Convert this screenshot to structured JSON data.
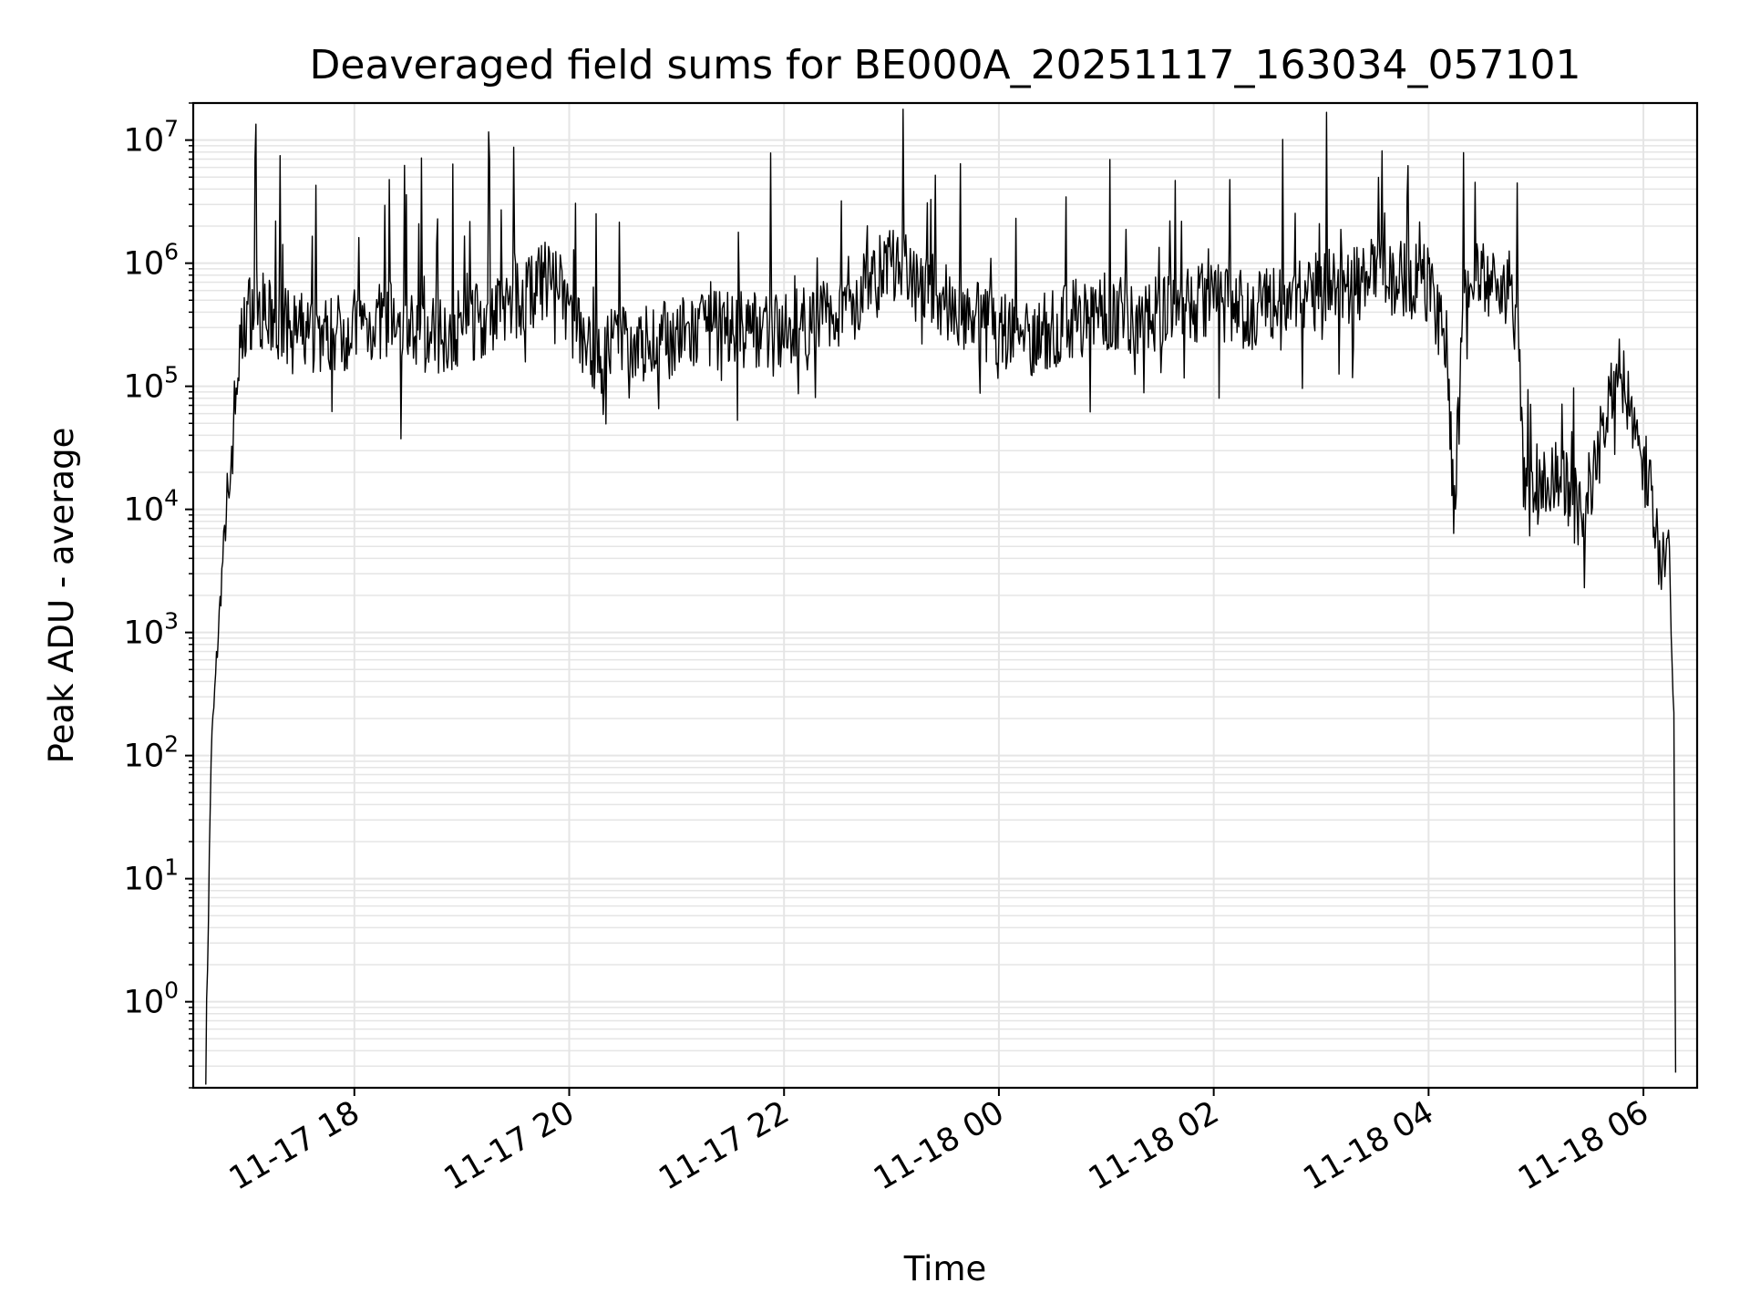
{
  "chart_data": {
    "type": "line",
    "title": "Deaveraged field sums for BE000A_20251117_163034_057101",
    "xlabel": "Time",
    "ylabel": "Peak ADU - average",
    "yscale": "log",
    "grid": true,
    "line_color": "#000000",
    "grid_color": "#e5e5e5",
    "xlim": [
      "2025-11-17 16:30",
      "2025-11-18 06:30"
    ],
    "ylim": [
      0.2,
      20000000
    ],
    "xticks": [
      {
        "value": "2025-11-17 18:00",
        "label": "11-17 18"
      },
      {
        "value": "2025-11-17 20:00",
        "label": "11-17 20"
      },
      {
        "value": "2025-11-17 22:00",
        "label": "11-17 22"
      },
      {
        "value": "2025-11-18 00:00",
        "label": "11-18 00"
      },
      {
        "value": "2025-11-18 02:00",
        "label": "11-18 02"
      },
      {
        "value": "2025-11-18 04:00",
        "label": "11-18 04"
      },
      {
        "value": "2025-11-18 06:00",
        "label": "11-18 06"
      }
    ],
    "yticks": [
      {
        "exp": "0",
        "label_base": "10",
        "value": 1
      },
      {
        "exp": "1",
        "label_base": "10",
        "value": 10
      },
      {
        "exp": "2",
        "label_base": "10",
        "value": 100
      },
      {
        "exp": "3",
        "label_base": "10",
        "value": 1000
      },
      {
        "exp": "4",
        "label_base": "10",
        "value": 10000
      },
      {
        "exp": "5",
        "label_base": "10",
        "value": 100000
      },
      {
        "exp": "6",
        "label_base": "10",
        "value": 1000000
      },
      {
        "exp": "7",
        "label_base": "10",
        "value": 10000000
      }
    ],
    "series": [
      {
        "x": [
          "2025-11-17 16:37",
          "2025-11-17 16:40",
          "2025-11-17 16:44",
          "2025-11-17 16:47",
          "2025-11-17 16:50",
          "2025-11-17 16:55",
          "2025-11-17 17:00",
          "2025-11-17 17:06",
          "2025-11-17 17:12",
          "2025-11-17 17:20",
          "2025-11-17 17:30",
          "2025-11-17 17:40",
          "2025-11-17 17:50",
          "2025-11-17 18:00",
          "2025-11-17 18:20",
          "2025-11-17 18:40",
          "2025-11-17 19:00",
          "2025-11-17 19:20",
          "2025-11-17 19:40",
          "2025-11-17 19:50",
          "2025-11-17 20:10",
          "2025-11-17 20:40",
          "2025-11-17 21:00",
          "2025-11-17 21:20",
          "2025-11-17 21:40",
          "2025-11-17 22:00",
          "2025-11-17 22:20",
          "2025-11-17 22:40",
          "2025-11-17 23:00",
          "2025-11-17 23:20",
          "2025-11-17 23:40",
          "2025-11-18 00:00",
          "2025-11-18 00:20",
          "2025-11-18 00:40",
          "2025-11-18 01:00",
          "2025-11-18 01:20",
          "2025-11-18 01:40",
          "2025-11-18 02:00",
          "2025-11-18 02:20",
          "2025-11-18 02:40",
          "2025-11-18 03:00",
          "2025-11-18 03:20",
          "2025-11-18 03:40",
          "2025-11-18 04:00",
          "2025-11-18 04:10",
          "2025-11-18 04:14",
          "2025-11-18 04:20",
          "2025-11-18 04:30",
          "2025-11-18 04:45",
          "2025-11-18 04:50",
          "2025-11-18 04:53",
          "2025-11-18 04:55",
          "2025-11-18 05:05",
          "2025-11-18 05:15",
          "2025-11-18 05:25",
          "2025-11-18 05:35",
          "2025-11-18 05:45",
          "2025-11-18 05:55",
          "2025-11-18 06:05",
          "2025-11-18 06:10",
          "2025-11-18 06:14",
          "2025-11-18 06:17",
          "2025-11-18 06:18"
        ],
        "y": [
          0.3,
          100,
          1000,
          5000,
          15000,
          150000,
          400000,
          450000,
          350000,
          300000,
          280000,
          260000,
          270000,
          300000,
          350000,
          250000,
          300000,
          400000,
          600000,
          800000,
          200000,
          220000,
          250000,
          280000,
          300000,
          280000,
          350000,
          500000,
          1000000,
          600000,
          400000,
          300000,
          250000,
          350000,
          400000,
          380000,
          450000,
          500000,
          400000,
          500000,
          600000,
          700000,
          800000,
          700000,
          200000,
          10000,
          500000,
          800000,
          600000,
          300000,
          20000,
          10000,
          15000,
          20000,
          8000,
          30000,
          150000,
          60000,
          10000,
          3000,
          8000,
          200,
          0.3
        ]
      }
    ]
  }
}
